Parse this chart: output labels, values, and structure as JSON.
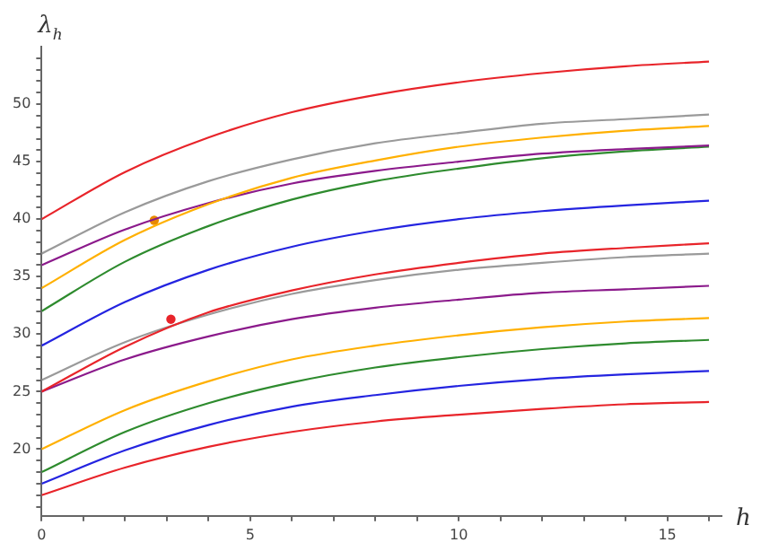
{
  "chart_data": {
    "type": "line",
    "xlabel": "h",
    "ylabel": "λ$_{h}$",
    "x": [
      0,
      2,
      4,
      6,
      8,
      10,
      12,
      14,
      16
    ],
    "xlim": [
      0,
      16.3
    ],
    "ylim": [
      14.2,
      55
    ],
    "xticks": [
      0,
      {
        "value": 1,
        "label": null
      },
      {
        "value": 2,
        "label": null
      },
      {
        "value": 3,
        "label": null
      },
      {
        "value": 4,
        "label": null
      },
      5,
      {
        "value": 6,
        "label": null
      },
      {
        "value": 7,
        "label": null
      },
      {
        "value": 8,
        "label": null
      },
      {
        "value": 9,
        "label": null
      },
      10,
      {
        "value": 11,
        "label": null
      },
      {
        "value": 12,
        "label": null
      },
      {
        "value": 13,
        "label": null
      },
      {
        "value": 14,
        "label": null
      },
      15,
      {
        "value": 16,
        "label": null
      }
    ],
    "yticks": [
      {
        "value": 15,
        "label": null
      },
      {
        "value": 16,
        "label": null
      },
      {
        "value": 17,
        "label": null
      },
      {
        "value": 18,
        "label": null
      },
      {
        "value": 19,
        "label": null
      },
      20,
      {
        "value": 21,
        "label": null
      },
      {
        "value": 22,
        "label": null
      },
      {
        "value": 23,
        "label": null
      },
      {
        "value": 24,
        "label": null
      },
      25,
      {
        "value": 26,
        "label": null
      },
      {
        "value": 27,
        "label": null
      },
      {
        "value": 28,
        "label": null
      },
      {
        "value": 29,
        "label": null
      },
      30,
      {
        "value": 31,
        "label": null
      },
      {
        "value": 32,
        "label": null
      },
      {
        "value": 33,
        "label": null
      },
      {
        "value": 34,
        "label": null
      },
      35,
      {
        "value": 36,
        "label": null
      },
      {
        "value": 37,
        "label": null
      },
      {
        "value": 38,
        "label": null
      },
      {
        "value": 39,
        "label": null
      },
      40,
      {
        "value": 41,
        "label": null
      },
      {
        "value": 42,
        "label": null
      },
      {
        "value": 43,
        "label": null
      },
      {
        "value": 44,
        "label": null
      },
      45,
      {
        "value": 46,
        "label": null
      },
      {
        "value": 47,
        "label": null
      },
      {
        "value": 48,
        "label": null
      },
      {
        "value": 49,
        "label": null
      },
      50,
      {
        "value": 51,
        "label": null
      },
      {
        "value": 52,
        "label": null
      },
      {
        "value": 53,
        "label": null
      },
      {
        "value": 54,
        "label": null
      }
    ],
    "grid": false,
    "legend": false,
    "marker": "none",
    "line_style": "solid",
    "series": [
      {
        "color": "#e8242a",
        "values": [
          40,
          44.1,
          47.1,
          49.3,
          50.8,
          51.9,
          52.7,
          53.3,
          53.7
        ]
      },
      {
        "color": "#9a9a9a",
        "values": [
          37,
          40.6,
          43.3,
          45.2,
          46.6,
          47.5,
          48.3,
          48.7,
          49.1
        ]
      },
      {
        "color": "#ffb000",
        "values": [
          34,
          38.2,
          41.3,
          43.6,
          45.1,
          46.3,
          47.1,
          47.7,
          48.1
        ]
      },
      {
        "color": "#8b1a8b",
        "values": [
          36,
          39.1,
          41.4,
          43.1,
          44.2,
          45.0,
          45.7,
          46.1,
          46.4
        ]
      },
      {
        "color": "#2e8b2e",
        "values": [
          32,
          36.3,
          39.4,
          41.7,
          43.3,
          44.4,
          45.3,
          45.9,
          46.3
        ]
      },
      {
        "color": "#2424e0",
        "values": [
          29,
          32.8,
          35.6,
          37.6,
          39.0,
          40.0,
          40.7,
          41.2,
          41.6
        ]
      },
      {
        "color": "#e8242a",
        "values": [
          25,
          28.9,
          31.9,
          33.8,
          35.2,
          36.2,
          37.0,
          37.5,
          37.9
        ]
      },
      {
        "color": "#9a9a9a",
        "values": [
          26,
          29.3,
          31.7,
          33.5,
          34.7,
          35.6,
          36.2,
          36.7,
          37.0
        ]
      },
      {
        "color": "#8b1a8b",
        "values": [
          25,
          27.8,
          29.8,
          31.3,
          32.3,
          33.0,
          33.6,
          33.9,
          34.2
        ]
      },
      {
        "color": "#ffb000",
        "values": [
          20,
          23.4,
          25.9,
          27.8,
          29.0,
          29.9,
          30.6,
          31.1,
          31.4
        ]
      },
      {
        "color": "#2e8b2e",
        "values": [
          18,
          21.5,
          24.0,
          25.8,
          27.1,
          28.0,
          28.7,
          29.2,
          29.5
        ]
      },
      {
        "color": "#2424e0",
        "values": [
          17,
          19.9,
          22.1,
          23.7,
          24.7,
          25.5,
          26.1,
          26.5,
          26.8
        ]
      },
      {
        "color": "#e8242a",
        "values": [
          16,
          18.4,
          20.2,
          21.5,
          22.4,
          23.0,
          23.5,
          23.9,
          24.1
        ]
      },
      {
        "type": "scatter",
        "marker": "circle",
        "color": "#e88a00",
        "x": [
          2.7
        ],
        "values": [
          39.9
        ]
      },
      {
        "type": "scatter",
        "marker": "circle",
        "color": "#e8242a",
        "x": [
          3.1
        ],
        "values": [
          31.3
        ]
      }
    ]
  }
}
